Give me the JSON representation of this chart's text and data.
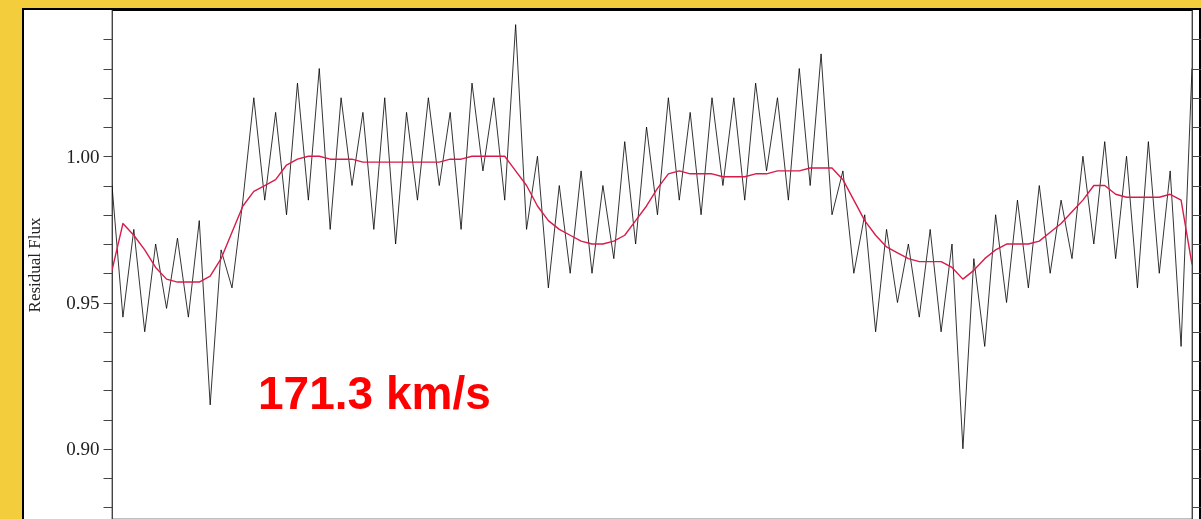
{
  "chart_data": {
    "type": "line",
    "ylabel": "Residual Flux",
    "annotations": [
      "171.3 km/s"
    ],
    "categories": [
      null,
      null,
      null,
      null,
      null,
      null,
      null,
      null,
      null,
      null,
      null,
      null,
      null,
      null,
      null,
      null,
      null,
      null,
      null,
      null,
      null,
      null,
      null,
      null,
      null,
      null,
      null,
      null,
      null,
      null,
      null,
      null,
      null,
      null,
      null,
      null,
      null,
      null,
      null,
      null,
      null,
      null,
      null,
      null,
      null,
      null,
      null,
      null,
      null,
      null,
      null,
      null,
      null,
      null,
      null,
      null,
      null,
      null,
      null,
      null,
      null,
      null,
      null,
      null,
      null,
      null,
      null,
      null,
      null,
      null,
      null,
      null,
      null,
      null,
      null,
      null,
      null,
      null,
      null,
      null,
      null,
      null,
      null,
      null,
      null,
      null,
      null,
      null,
      null,
      null,
      null,
      null,
      null,
      null,
      null,
      null,
      null,
      null,
      null,
      null
    ],
    "series": [
      {
        "color": "#000000",
        "values": [
          0.99,
          0.945,
          0.975,
          0.94,
          0.97,
          0.948,
          0.972,
          0.945,
          0.978,
          0.915,
          0.968,
          0.955,
          0.985,
          1.02,
          0.985,
          1.015,
          0.98,
          1.025,
          0.985,
          1.03,
          0.975,
          1.02,
          0.99,
          1.015,
          0.975,
          1.02,
          0.97,
          1.015,
          0.985,
          1.02,
          0.99,
          1.015,
          0.975,
          1.025,
          0.995,
          1.02,
          0.985,
          1.045,
          0.975,
          1.0,
          0.955,
          0.99,
          0.96,
          0.995,
          0.96,
          0.99,
          0.965,
          1.005,
          0.97,
          1.01,
          0.98,
          1.02,
          0.985,
          1.015,
          0.98,
          1.02,
          0.99,
          1.02,
          0.985,
          1.025,
          0.995,
          1.02,
          0.985,
          1.03,
          0.99,
          1.035,
          0.98,
          0.995,
          0.96,
          0.98,
          0.94,
          0.975,
          0.95,
          0.97,
          0.945,
          0.975,
          0.94,
          0.97,
          0.9,
          0.965,
          0.935,
          0.98,
          0.95,
          0.985,
          0.955,
          0.99,
          0.96,
          0.985,
          0.965,
          1.0,
          0.97,
          1.005,
          0.965,
          1.0,
          0.955,
          1.005,
          0.96,
          0.995,
          0.935,
          1.03
        ]
      },
      {
        "color": "#d81b4a",
        "values": [
          0.961,
          0.977,
          0.973,
          0.968,
          0.962,
          0.958,
          0.957,
          0.957,
          0.957,
          0.959,
          0.965,
          0.974,
          0.983,
          0.988,
          0.99,
          0.992,
          0.997,
          0.999,
          1.0,
          1.0,
          0.999,
          0.999,
          0.999,
          0.998,
          0.998,
          0.998,
          0.998,
          0.998,
          0.998,
          0.998,
          0.998,
          0.999,
          0.999,
          1.0,
          1.0,
          1.0,
          1.0,
          0.995,
          0.99,
          0.983,
          0.978,
          0.975,
          0.973,
          0.971,
          0.97,
          0.97,
          0.971,
          0.973,
          0.978,
          0.983,
          0.989,
          0.994,
          0.995,
          0.994,
          0.994,
          0.994,
          0.993,
          0.993,
          0.993,
          0.994,
          0.994,
          0.995,
          0.995,
          0.995,
          0.996,
          0.996,
          0.996,
          0.992,
          0.985,
          0.978,
          0.973,
          0.969,
          0.967,
          0.965,
          0.964,
          0.964,
          0.964,
          0.962,
          0.958,
          0.961,
          0.965,
          0.968,
          0.97,
          0.97,
          0.97,
          0.971,
          0.974,
          0.977,
          0.981,
          0.985,
          0.99,
          0.99,
          0.987,
          0.986,
          0.986,
          0.986,
          0.986,
          0.987,
          0.985,
          0.963
        ]
      }
    ],
    "ylim": [
      0.876,
      1.05
    ],
    "yticks": [
      {
        "value": 0.88,
        "label": null
      },
      {
        "value": 0.89,
        "label": null
      },
      {
        "value": 0.9,
        "label": "0.90"
      },
      {
        "value": 0.91,
        "label": null
      },
      {
        "value": 0.92,
        "label": null
      },
      {
        "value": 0.93,
        "label": null
      },
      {
        "value": 0.94,
        "label": null
      },
      {
        "value": 0.95,
        "label": "0.95"
      },
      {
        "value": 0.96,
        "label": null
      },
      {
        "value": 0.97,
        "label": null
      },
      {
        "value": 0.98,
        "label": null
      },
      {
        "value": 0.99,
        "label": null
      },
      {
        "value": 1.0,
        "label": "1.00"
      },
      {
        "value": 1.01,
        "label": null
      },
      {
        "value": 1.02,
        "label": null
      },
      {
        "value": 1.03,
        "label": null
      },
      {
        "value": 1.04,
        "label": null
      }
    ]
  }
}
